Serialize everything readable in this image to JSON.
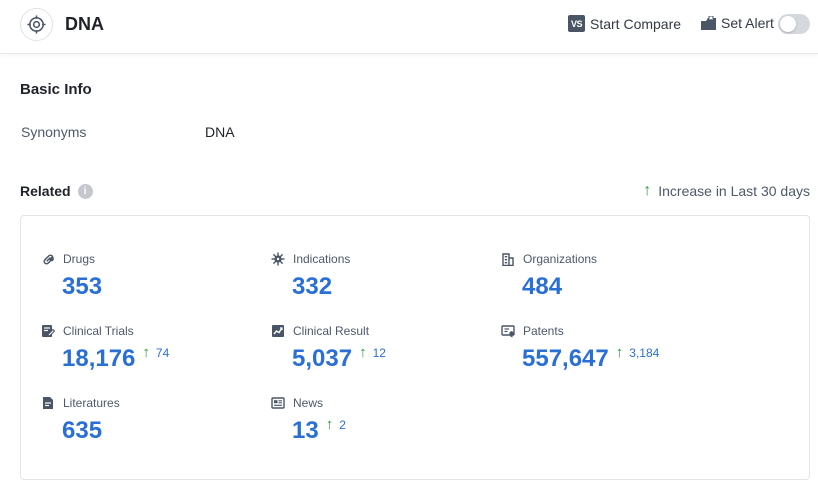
{
  "header": {
    "title": "DNA",
    "compare_icon": "VS",
    "compare_label": "Start Compare",
    "alert_label": "Set Alert",
    "alert_enabled": false
  },
  "basic_info": {
    "title": "Basic Info",
    "synonyms_label": "Synonyms",
    "synonyms_value": "DNA"
  },
  "related": {
    "title": "Related",
    "info_icon": "i",
    "legend_arrow": "↑",
    "legend_label": "Increase in Last 30 days",
    "accent_color": "#2a6fd6",
    "increase_color": "#2fa033",
    "items": [
      {
        "icon": "pill-icon",
        "label": "Drugs",
        "value": "353",
        "increase": ""
      },
      {
        "icon": "virus-icon",
        "label": "Indications",
        "value": "332",
        "increase": ""
      },
      {
        "icon": "building-icon",
        "label": "Organizations",
        "value": "484",
        "increase": ""
      },
      {
        "icon": "clipboard-edit-icon",
        "label": "Clinical Trials",
        "value": "18,176",
        "increase": "74"
      },
      {
        "icon": "chart-report-icon",
        "label": "Clinical Result",
        "value": "5,037",
        "increase": "12"
      },
      {
        "icon": "patent-icon",
        "label": "Patents",
        "value": "557,647",
        "increase": "3,184"
      },
      {
        "icon": "document-icon",
        "label": "Literatures",
        "value": "635",
        "increase": ""
      },
      {
        "icon": "newspaper-icon",
        "label": "News",
        "value": "13",
        "increase": "2"
      }
    ]
  }
}
